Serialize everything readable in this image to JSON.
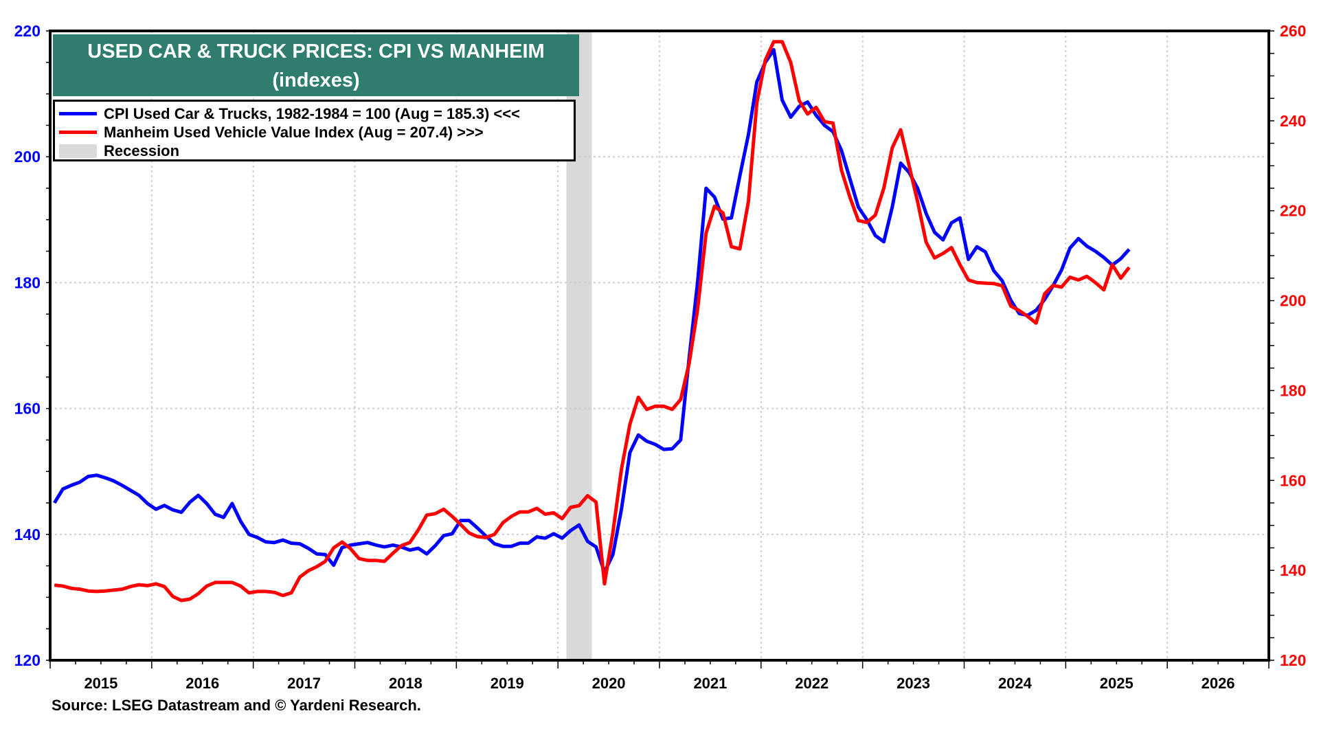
{
  "chart_data": {
    "type": "line",
    "title": "USED CAR & TRUCK PRICES: CPI VS MANHEIM",
    "subtitle": "(indexes)",
    "source": "Source: LSEG Datastream and © Yardeni Research.",
    "x_start": "2015-01",
    "frequency": "monthly",
    "x_tick_labels": [
      "2015",
      "2016",
      "2017",
      "2018",
      "2019",
      "2020",
      "2021",
      "2022",
      "2023",
      "2024",
      "2025",
      "2026"
    ],
    "xlim": [
      "2015-01",
      "2026-12"
    ],
    "left_axis": {
      "ylim": [
        120,
        220
      ],
      "ticks": [
        120,
        140,
        160,
        180,
        200,
        220
      ],
      "color": "#0000ff"
    },
    "right_axis": {
      "ylim": [
        120,
        260
      ],
      "ticks": [
        120,
        140,
        160,
        180,
        200,
        220,
        240,
        260
      ],
      "color": "#ff0000"
    },
    "grid": true,
    "legend_position": "top-left",
    "recession": {
      "label": "Recession",
      "start": "2020-02",
      "end": "2020-04",
      "color": "#d9d9d9"
    },
    "series": [
      {
        "name": "CPI Used Car & Trucks, 1982-1984 = 100  (Aug = 185.3) <<<",
        "axis": "left",
        "color": "#0000ff",
        "values": [
          145.0,
          147.2,
          147.8,
          148.3,
          149.2,
          149.4,
          149.0,
          148.5,
          147.8,
          147.0,
          146.2,
          144.9,
          144.0,
          144.6,
          143.9,
          143.5,
          145.1,
          146.2,
          144.9,
          143.2,
          142.7,
          144.9,
          142.1,
          140.0,
          139.5,
          138.8,
          138.7,
          139.1,
          138.6,
          138.5,
          137.8,
          136.9,
          136.8,
          135.1,
          137.9,
          138.3,
          138.5,
          138.7,
          138.3,
          138.0,
          138.3,
          138.0,
          137.5,
          137.8,
          136.9,
          138.2,
          139.8,
          140.1,
          142.2,
          142.2,
          141.0,
          139.7,
          138.5,
          138.1,
          138.1,
          138.6,
          138.6,
          139.6,
          139.4,
          140.1,
          139.4,
          140.6,
          141.5,
          138.9,
          138.0,
          134.0,
          136.8,
          144.0,
          153.0,
          155.8,
          154.8,
          154.3,
          153.5,
          153.6,
          155.0,
          168.0,
          180.0,
          195.0,
          193.6,
          190.1,
          190.3,
          197.0,
          203.5,
          211.9,
          215.0,
          217.0,
          209.0,
          206.3,
          208.0,
          208.7,
          206.6,
          205.0,
          204.0,
          201.0,
          196.5,
          192.0,
          190.0,
          187.5,
          186.5,
          192.0,
          199.0,
          197.5,
          195.0,
          191.0,
          188.0,
          186.8,
          189.5,
          190.3,
          183.7,
          185.7,
          184.9,
          181.9,
          180.3,
          177.2,
          175.1,
          174.8,
          175.6,
          177.3,
          179.5,
          182.0,
          185.5,
          187.0,
          185.8,
          185.0,
          184.0,
          182.8,
          183.8,
          185.3
        ]
      },
      {
        "name": "Manheim Used Vehicle Value Index (Aug = 207.4) >>>",
        "axis": "right",
        "color": "#ff0000",
        "values": [
          136.7,
          136.5,
          136.0,
          135.8,
          135.4,
          135.3,
          135.4,
          135.6,
          135.8,
          136.4,
          136.8,
          136.6,
          137.0,
          136.4,
          134.2,
          133.3,
          133.6,
          134.8,
          136.5,
          137.3,
          137.3,
          137.3,
          136.5,
          135.0,
          135.3,
          135.3,
          135.1,
          134.4,
          135.0,
          138.5,
          139.9,
          140.8,
          142.0,
          145.0,
          146.3,
          144.8,
          142.6,
          142.2,
          142.2,
          142.0,
          143.8,
          145.5,
          146.2,
          149.0,
          152.3,
          152.6,
          153.6,
          152.0,
          150.2,
          148.3,
          147.5,
          147.3,
          148.0,
          150.6,
          152.0,
          153.0,
          153.0,
          153.8,
          152.5,
          152.8,
          151.5,
          154.0,
          154.4,
          156.6,
          155.2,
          137.0,
          148.5,
          162.5,
          172.5,
          178.5,
          175.8,
          176.5,
          176.5,
          175.8,
          178.0,
          186.0,
          198.0,
          215.0,
          221.0,
          219.5,
          212.0,
          211.5,
          222.0,
          244.0,
          253.5,
          257.6,
          257.6,
          253.0,
          244.5,
          241.5,
          243.0,
          239.8,
          239.5,
          229.0,
          223.0,
          217.8,
          217.4,
          219.0,
          225.0,
          234.0,
          238.0,
          230.0,
          222.0,
          213.0,
          209.5,
          210.5,
          211.8,
          208.0,
          204.6,
          204.0,
          203.9,
          203.8,
          203.3,
          198.8,
          197.8,
          196.5,
          195.0,
          201.5,
          203.4,
          203.0,
          205.2,
          204.6,
          205.4,
          204.0,
          202.4,
          208.0,
          205.0,
          207.4
        ]
      }
    ]
  },
  "legend": {
    "cpi": "CPI Used Car & Trucks, 1982-1984 = 100  (Aug = 185.3) <<<",
    "manheim": "Manheim Used Vehicle Value Index (Aug = 207.4) >>>",
    "recession": "Recession"
  }
}
